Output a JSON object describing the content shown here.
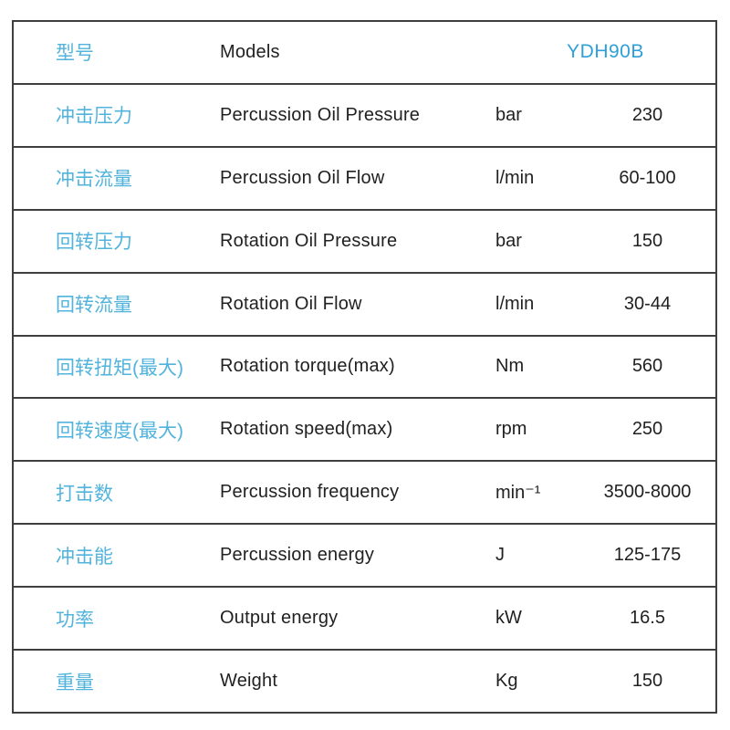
{
  "colors": {
    "chinese_label": "#52b4dc",
    "model_value": "#2f9fd8",
    "body_text": "#212121",
    "border": "#3f3f3f"
  },
  "table": {
    "header": {
      "label_zh": "型号",
      "label_en": "Models",
      "model": "YDH90B"
    },
    "rows": [
      {
        "zh": "冲击压力",
        "en": "Percussion Oil Pressure",
        "unit": "bar",
        "value": "230"
      },
      {
        "zh": "冲击流量",
        "en": "Percussion Oil Flow",
        "unit": "l/min",
        "value": "60-100"
      },
      {
        "zh": "回转压力",
        "en": "Rotation Oil Pressure",
        "unit": "bar",
        "value": "150"
      },
      {
        "zh": "回转流量",
        "en": "Rotation Oil Flow",
        "unit": "l/min",
        "value": "30-44"
      },
      {
        "zh": "回转扭矩(最大)",
        "en": "Rotation torque(max)",
        "unit": "Nm",
        "value": "560"
      },
      {
        "zh": "回转速度(最大)",
        "en": "Rotation speed(max)",
        "unit": "rpm",
        "value": "250"
      },
      {
        "zh": "打击数",
        "en": "Percussion frequency",
        "unit": "min⁻¹",
        "value": "3500-8000"
      },
      {
        "zh": "冲击能",
        "en": "Percussion energy",
        "unit": "J",
        "value": "125-175"
      },
      {
        "zh": "功率",
        "en": "Output energy",
        "unit": "kW",
        "value": "16.5"
      },
      {
        "zh": "重量",
        "en": "Weight",
        "unit": "Kg",
        "value": "150"
      }
    ]
  }
}
